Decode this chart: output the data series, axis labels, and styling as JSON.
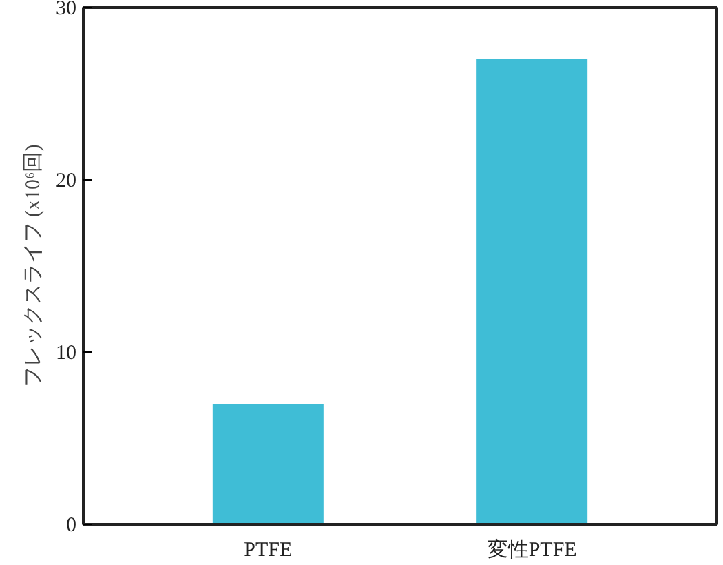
{
  "chart_data": {
    "type": "bar",
    "ylabel": "フレックスライフ (x10⁶回)",
    "categories": [
      "PTFE",
      "変性PTFE"
    ],
    "values": [
      7,
      27
    ],
    "color": "#3fbdd6",
    "ylim": [
      0,
      30
    ],
    "yticks": [
      0,
      10,
      20,
      30
    ],
    "grid": false
  }
}
